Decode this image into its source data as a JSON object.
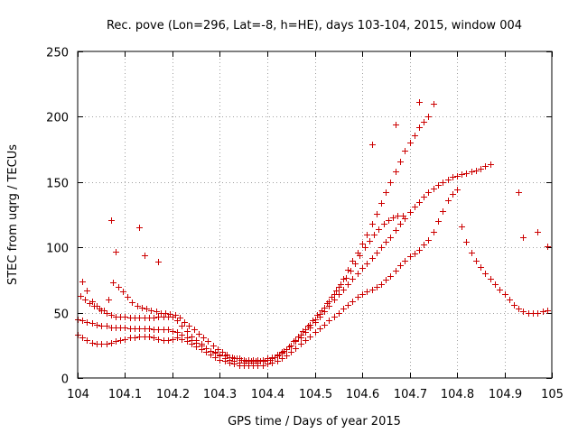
{
  "chart_data": {
    "type": "scatter",
    "title": "Rec. pove (Lon=296, Lat=-8, h=HE), days 103-104, 2015, window 004",
    "xlabel": "GPS time / Days of year 2015",
    "ylabel": "STEC from uqrg / TECUs",
    "xlim": [
      104,
      105
    ],
    "ylim": [
      0,
      250
    ],
    "grid": true,
    "marker": "plus",
    "color": "#cc0000",
    "xticks": [
      104,
      104.1,
      104.2,
      104.3,
      104.4,
      104.5,
      104.6,
      104.7,
      104.8,
      104.9,
      105
    ],
    "xtick_labels": [
      "104",
      "104.1",
      "104.2",
      "104.3",
      "104.4",
      "104.5",
      "104.6",
      "104.7",
      "104.8",
      "104.9",
      "105"
    ],
    "yticks": [
      0,
      50,
      100,
      150,
      200,
      250
    ],
    "ytick_labels": [
      "0",
      "50",
      "100",
      "150",
      "200",
      "250"
    ],
    "series": [
      {
        "x": [
          104.01,
          104.02,
          104.03,
          104.04,
          104.05,
          104.06,
          104.07,
          104.08,
          104.09,
          104.1,
          104.11,
          104.12,
          104.13,
          104.14,
          104.15,
          104.16,
          104.17,
          104.18,
          104.19,
          104.2,
          104.21,
          104.22,
          104.23,
          104.24,
          104.25,
          104.26,
          104.27,
          104.28,
          104.29,
          104.3,
          104.31,
          104.32,
          104.33,
          104.34,
          104.35,
          104.36,
          104.37,
          104.38,
          104.39,
          104.4,
          104.41,
          104.42,
          104.43,
          104.44,
          104.45,
          104.46,
          104.47,
          104.48,
          104.49,
          104.5,
          104.51,
          104.52,
          104.53,
          104.54,
          104.55,
          104.56,
          104.57,
          104.58,
          104.59,
          104.6,
          104.61,
          104.62,
          104.63,
          104.64,
          104.65,
          104.66,
          104.67,
          104.68,
          104.69,
          104.7,
          104.71,
          104.72,
          104.73,
          104.74,
          104.75
        ],
        "y": [
          74,
          67,
          59,
          55,
          52,
          50,
          48,
          47,
          47,
          47,
          46,
          46,
          46,
          46,
          46,
          46,
          47,
          47,
          47,
          47,
          44,
          40,
          36,
          32,
          29,
          26,
          23,
          21,
          19,
          17,
          15,
          14,
          13,
          12,
          12,
          12,
          12,
          12,
          13,
          14,
          15,
          17,
          19,
          22,
          25,
          29,
          33,
          37,
          41,
          45,
          49,
          54,
          59,
          64,
          70,
          76,
          83,
          90,
          96,
          103,
          110,
          118,
          126,
          134,
          142,
          150,
          158,
          166,
          174,
          180,
          186,
          192,
          196,
          200,
          210
        ]
      },
      {
        "x": [
          104.0,
          104.01,
          104.02,
          104.03,
          104.04,
          104.05,
          104.06,
          104.07,
          104.08,
          104.09,
          104.1,
          104.11,
          104.12,
          104.13,
          104.14,
          104.15,
          104.16,
          104.17,
          104.18,
          104.19,
          104.2,
          104.21,
          104.22,
          104.23,
          104.24,
          104.25,
          104.26,
          104.27,
          104.28,
          104.29,
          104.3,
          104.31,
          104.32,
          104.33,
          104.34,
          104.35,
          104.36,
          104.37,
          104.38,
          104.39,
          104.4,
          104.41,
          104.42,
          104.43,
          104.44,
          104.45,
          104.46,
          104.47,
          104.48,
          104.49,
          104.5,
          104.51,
          104.52,
          104.53,
          104.54,
          104.55,
          104.56,
          104.57,
          104.58,
          104.59,
          104.6,
          104.61,
          104.62,
          104.63,
          104.64,
          104.65,
          104.66,
          104.67,
          104.68,
          104.69,
          104.7,
          104.71,
          104.72,
          104.73,
          104.74,
          104.75,
          104.76,
          104.77,
          104.78,
          104.79,
          104.8,
          104.81,
          104.82,
          104.83,
          104.84,
          104.85,
          104.86,
          104.87
        ],
        "y": [
          45,
          44,
          43,
          42,
          41,
          40,
          40,
          39,
          39,
          39,
          39,
          38,
          38,
          38,
          38,
          38,
          37,
          37,
          37,
          37,
          36,
          35,
          33,
          31,
          29,
          27,
          25,
          23,
          21,
          20,
          18,
          17,
          16,
          15,
          15,
          14,
          14,
          14,
          14,
          14,
          15,
          16,
          18,
          20,
          22,
          25,
          28,
          31,
          35,
          39,
          43,
          47,
          51,
          55,
          60,
          64,
          68,
          72,
          76,
          80,
          84,
          88,
          92,
          96,
          100,
          104,
          108,
          113,
          118,
          122,
          127,
          131,
          135,
          139,
          142,
          145,
          148,
          150,
          152,
          154,
          155,
          156,
          157,
          158,
          159,
          160,
          162,
          164
        ]
      },
      {
        "x": [
          104.0,
          104.01,
          104.02,
          104.03,
          104.04,
          104.05,
          104.06,
          104.07,
          104.08,
          104.09,
          104.1,
          104.11,
          104.12,
          104.13,
          104.14,
          104.15,
          104.16,
          104.17,
          104.18,
          104.19,
          104.2,
          104.21,
          104.22,
          104.23,
          104.24,
          104.25,
          104.26,
          104.27,
          104.28,
          104.29,
          104.3,
          104.31,
          104.32,
          104.33,
          104.34,
          104.35,
          104.36,
          104.37,
          104.38,
          104.39,
          104.4,
          104.41,
          104.42,
          104.43,
          104.44,
          104.45,
          104.46,
          104.47,
          104.48,
          104.49,
          104.5,
          104.51,
          104.52,
          104.53,
          104.54,
          104.55,
          104.56,
          104.57,
          104.58,
          104.59,
          104.6,
          104.61,
          104.62,
          104.63,
          104.64,
          104.65,
          104.66,
          104.67,
          104.68,
          104.69,
          104.7,
          104.71,
          104.72,
          104.73,
          104.74,
          104.75,
          104.76,
          104.77,
          104.78,
          104.79,
          104.8,
          104.81,
          104.82,
          104.83,
          104.84,
          104.85,
          104.86,
          104.87,
          104.88,
          104.89,
          104.9,
          104.91,
          104.92,
          104.93,
          104.94,
          104.95,
          104.96,
          104.97,
          104.98,
          104.99
        ],
        "y": [
          33,
          31,
          29,
          27,
          26,
          26,
          26,
          27,
          28,
          29,
          30,
          31,
          31,
          32,
          32,
          32,
          31,
          30,
          29,
          29,
          30,
          31,
          30,
          28,
          26,
          24,
          22,
          20,
          18,
          16,
          14,
          13,
          12,
          11,
          10,
          10,
          10,
          10,
          10,
          10,
          11,
          12,
          13,
          15,
          17,
          20,
          23,
          26,
          29,
          32,
          35,
          38,
          41,
          44,
          47,
          50,
          53,
          56,
          59,
          62,
          64,
          66,
          68,
          70,
          72,
          75,
          78,
          82,
          86,
          90,
          93,
          95,
          98,
          102,
          106,
          112,
          120,
          128,
          136,
          141,
          144,
          116,
          104,
          96,
          90,
          85,
          80,
          76,
          72,
          68,
          64,
          60,
          56,
          53,
          51,
          50,
          50,
          50,
          51,
          52
        ]
      },
      {
        "x": [
          104.005,
          104.015,
          104.025,
          104.035,
          104.045,
          104.055,
          104.065,
          104.075,
          104.085,
          104.095,
          104.105,
          104.115,
          104.125,
          104.135,
          104.145,
          104.155,
          104.165,
          104.175,
          104.185,
          104.195,
          104.205,
          104.215,
          104.225,
          104.235,
          104.245,
          104.255,
          104.265,
          104.275,
          104.285,
          104.295,
          104.305,
          104.315,
          104.325,
          104.335,
          104.345,
          104.355,
          104.365,
          104.375,
          104.385,
          104.395,
          104.405,
          104.415,
          104.425,
          104.435,
          104.445,
          104.455,
          104.465,
          104.475,
          104.485,
          104.495,
          104.505,
          104.515,
          104.525,
          104.535,
          104.545,
          104.555,
          104.565,
          104.575,
          104.585,
          104.595,
          104.605,
          104.615,
          104.625,
          104.635,
          104.645,
          104.655,
          104.665,
          104.675,
          104.685
        ],
        "y": [
          63,
          60,
          57,
          55,
          53,
          52,
          60,
          73,
          70,
          66,
          62,
          58,
          55,
          54,
          53,
          52,
          51,
          50,
          50,
          49,
          48,
          46,
          43,
          40,
          37,
          34,
          31,
          28,
          25,
          22,
          20,
          18,
          16,
          15,
          14,
          13,
          13,
          13,
          13,
          13,
          14,
          16,
          18,
          21,
          24,
          28,
          32,
          36,
          40,
          44,
          48,
          52,
          57,
          62,
          67,
          72,
          77,
          82,
          88,
          94,
          100,
          105,
          110,
          114,
          118,
          121,
          123,
          124,
          124
        ]
      },
      {
        "x": [
          104.07,
          104.08,
          104.13,
          104.14,
          104.17,
          104.62,
          104.67,
          104.72,
          104.93,
          104.94,
          104.97,
          104.99
        ],
        "y": [
          121,
          97,
          115,
          94,
          89,
          179,
          194,
          211,
          142,
          108,
          112,
          101
        ]
      }
    ]
  }
}
